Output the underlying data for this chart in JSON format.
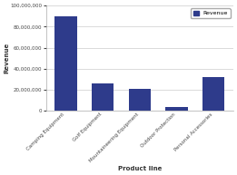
{
  "categories": [
    "Camping Equipment",
    "Golf Equipment",
    "Mountaineering Equipment",
    "Outdoor Protection",
    "Personal Accessories"
  ],
  "values": [
    90000000,
    26000000,
    21000000,
    4000000,
    32000000
  ],
  "bar_color": "#2E3B8B",
  "legend_label": "Revenue",
  "xlabel": "Product line",
  "ylabel": "Revenue",
  "ylim": [
    0,
    100000000
  ],
  "yticks": [
    0,
    20000000,
    40000000,
    60000000,
    80000000,
    100000000
  ],
  "background_color": "#ffffff",
  "plot_bg_color": "#ffffff",
  "grid_color": "#cccccc"
}
